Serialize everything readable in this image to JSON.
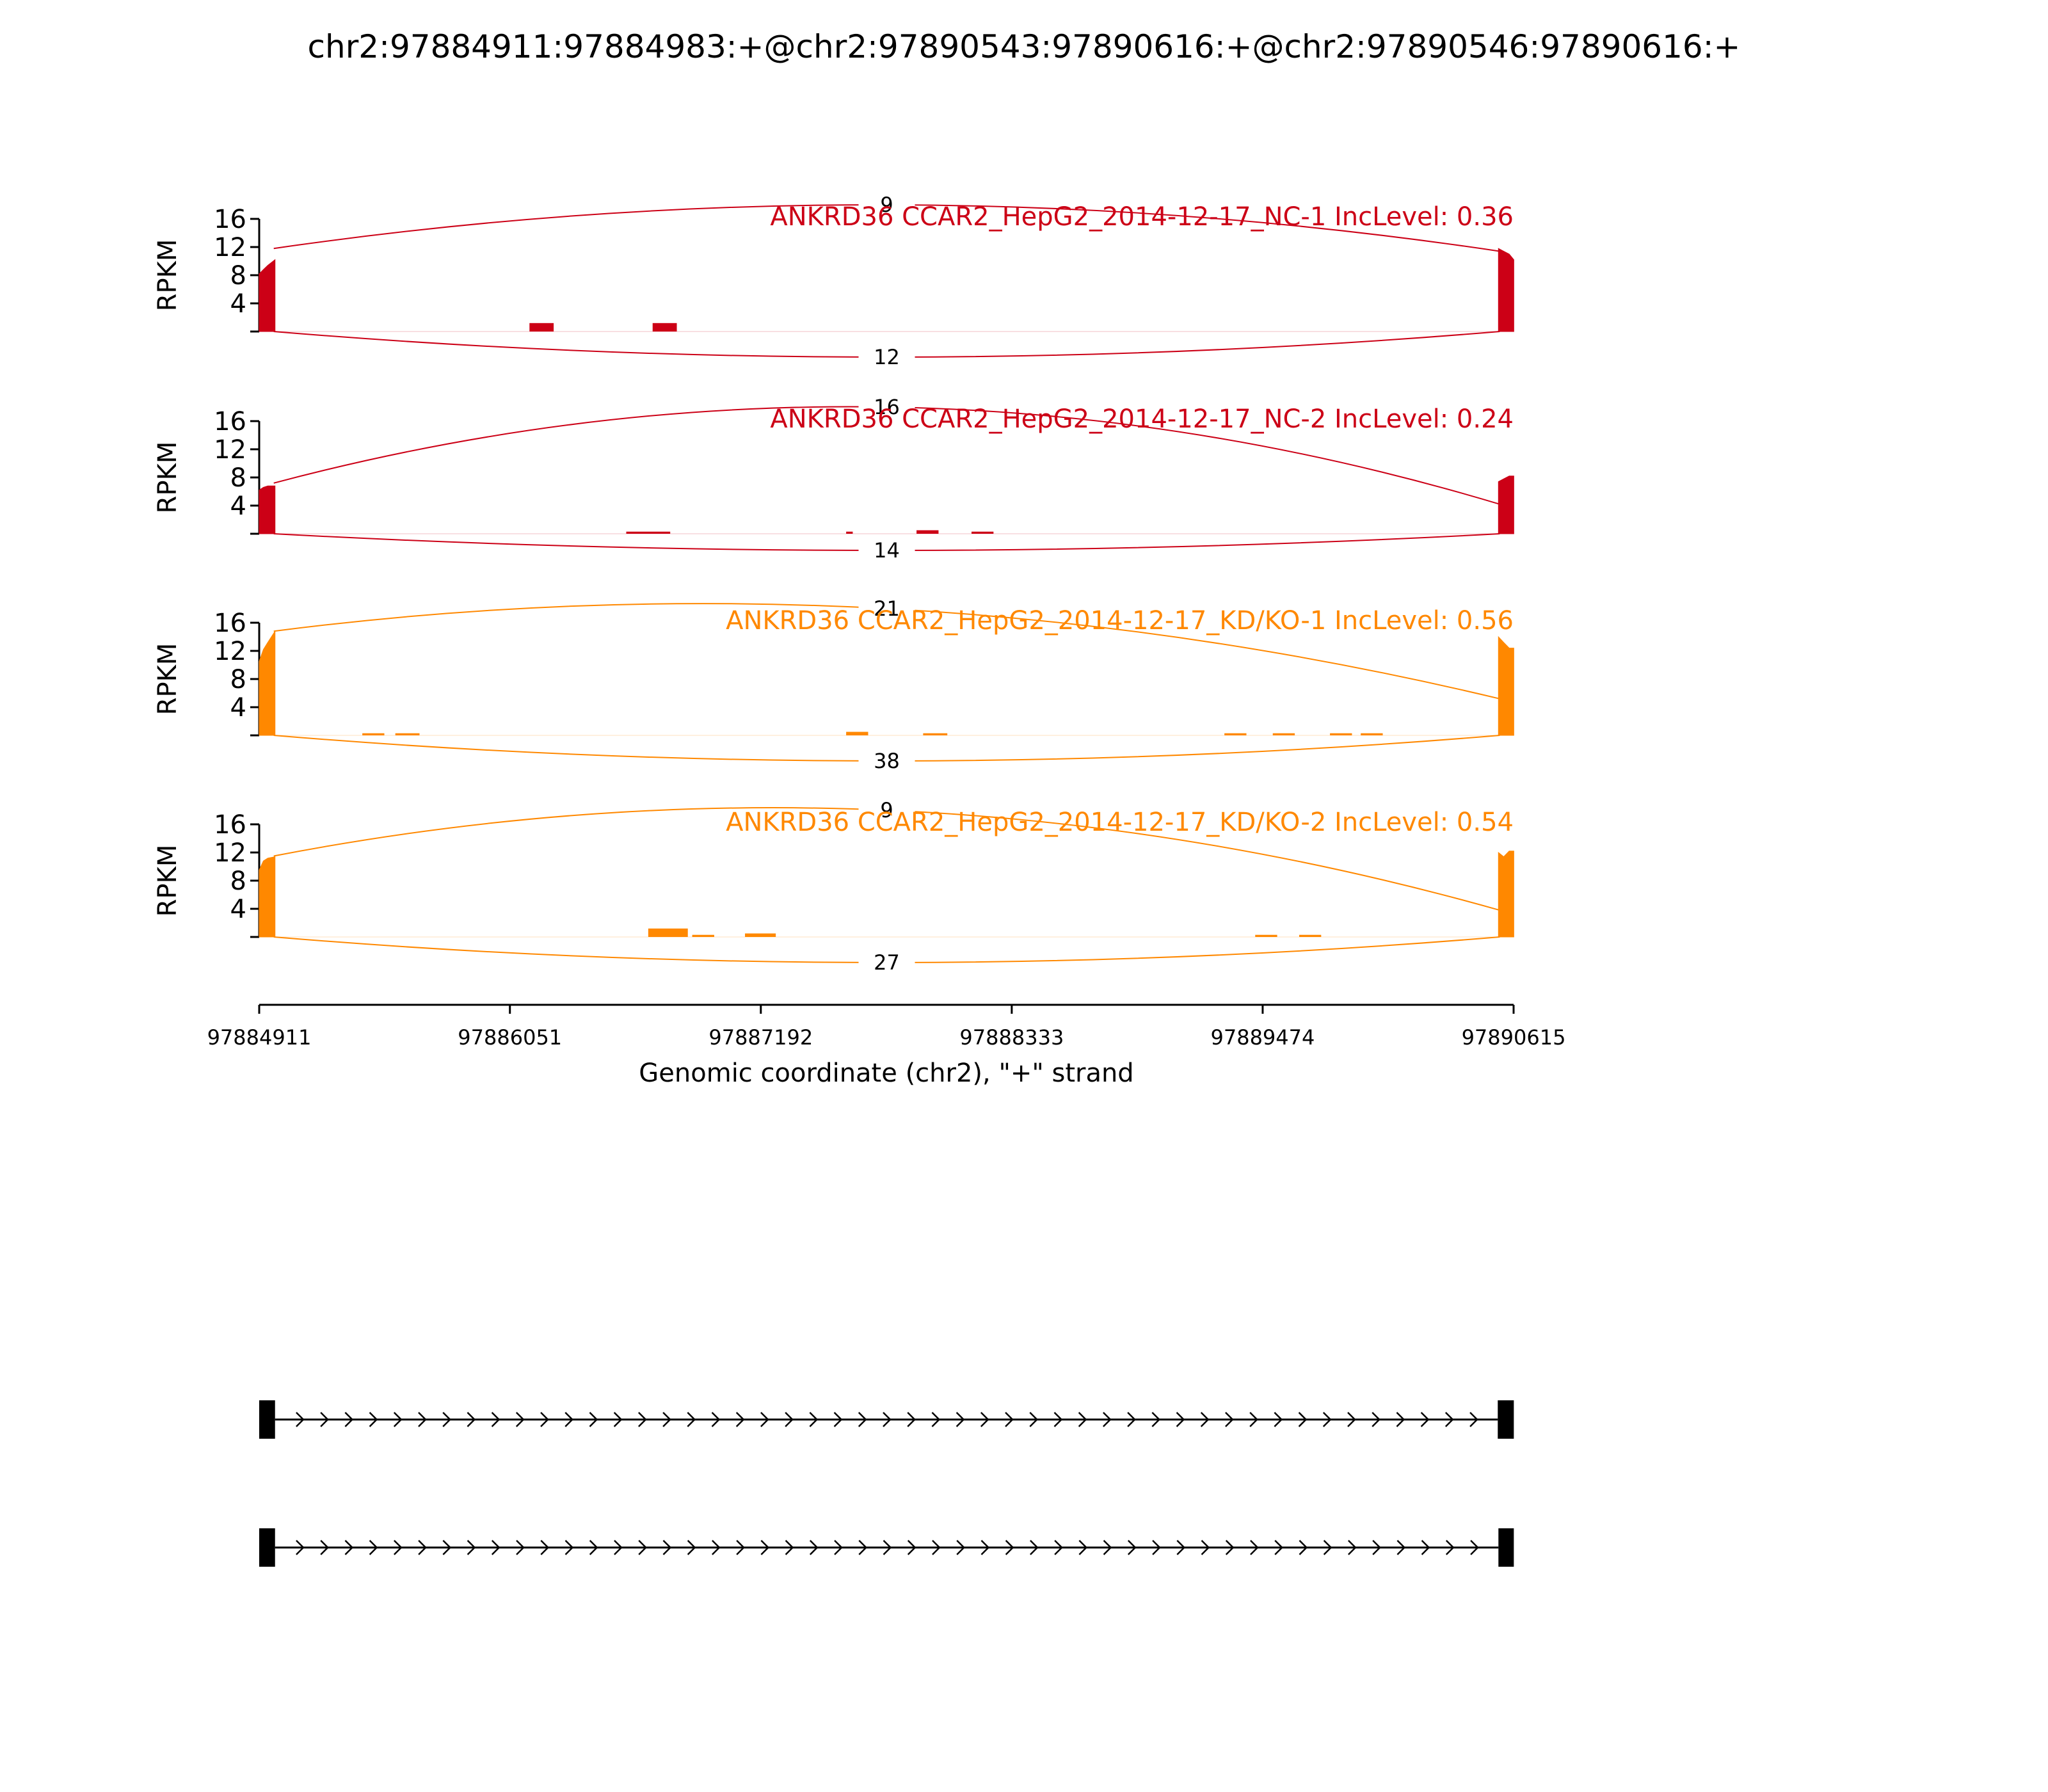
{
  "chart_data": {
    "type": "area",
    "title": "chr2:97884911:97884983:+@chr2:97890543:97890616:+@chr2:97890546:97890616:+",
    "ylabel": "RPKM",
    "xlabel": "Genomic coordinate (chr2), \"+\" strand",
    "xlim": [
      97884911,
      97890615
    ],
    "ylim": [
      0,
      16
    ],
    "yticks": [
      "4",
      "8",
      "12",
      "16"
    ],
    "xticks": [
      97884911,
      97886051,
      97887192,
      97888333,
      97889474,
      97890615
    ],
    "xtick_labels": [
      "97884911",
      "97886051",
      "97887192",
      "97888333",
      "97889474",
      "97890615"
    ],
    "colors": {
      "nc": "#cc0016",
      "kd": "#ff8800",
      "axis": "#000000",
      "transcript": "#000000"
    },
    "panels": [
      {
        "label": "ANKRD36 CCAR2_HepG2_2014-12-17_NC-1 IncLevel: 0.36",
        "color": "#cc0016",
        "junction_upper": "9",
        "junction_lower": "12",
        "upper_arc_ends": [
          11.8,
          11.4
        ],
        "coverage_left": [
          [
            97884911,
            8.2
          ],
          [
            97884930,
            8.8
          ],
          [
            97884950,
            9.4
          ],
          [
            97884983,
            10.2
          ]
        ],
        "coverage_right": [
          [
            97890546,
            11.8
          ],
          [
            97890570,
            11.4
          ],
          [
            97890595,
            11.0
          ],
          [
            97890616,
            10.2
          ]
        ],
        "blocks": [
          [
            97886140,
            97886250,
            1.2
          ],
          [
            97886700,
            97886810,
            1.2
          ]
        ]
      },
      {
        "label": "ANKRD36 CCAR2_HepG2_2014-12-17_NC-2 IncLevel: 0.24",
        "color": "#cc0016",
        "junction_upper": "16",
        "junction_lower": "14",
        "upper_arc_ends": [
          7.2,
          4.2
        ],
        "coverage_left": [
          [
            97884911,
            6.2
          ],
          [
            97884930,
            6.6
          ],
          [
            97884950,
            6.8
          ],
          [
            97884983,
            6.8
          ]
        ],
        "coverage_right": [
          [
            97890546,
            7.4
          ],
          [
            97890570,
            7.8
          ],
          [
            97890595,
            8.2
          ],
          [
            97890616,
            8.2
          ]
        ],
        "blocks": [
          [
            97886580,
            97886780,
            0.3
          ],
          [
            97887580,
            97887610,
            0.3
          ],
          [
            97887900,
            97888000,
            0.5
          ],
          [
            97888150,
            97888250,
            0.3
          ]
        ]
      },
      {
        "label": "ANKRD36 CCAR2_HepG2_2014-12-17_KD/KO-1 IncLevel: 0.56",
        "color": "#ff8800",
        "junction_upper": "21",
        "junction_lower": "38",
        "upper_arc_ends": [
          14.8,
          5.2
        ],
        "coverage_left": [
          [
            97884911,
            10.5
          ],
          [
            97884930,
            12.2
          ],
          [
            97884950,
            13.2
          ],
          [
            97884983,
            14.8
          ]
        ],
        "coverage_right": [
          [
            97890546,
            14.0
          ],
          [
            97890570,
            13.2
          ],
          [
            97890595,
            12.4
          ],
          [
            97890616,
            12.4
          ]
        ],
        "blocks": [
          [
            97885380,
            97885480,
            0.3
          ],
          [
            97885530,
            97885640,
            0.3
          ],
          [
            97887580,
            97887680,
            0.5
          ],
          [
            97887930,
            97888040,
            0.3
          ],
          [
            97889300,
            97889400,
            0.3
          ],
          [
            97889520,
            97889620,
            0.3
          ],
          [
            97889780,
            97889880,
            0.3
          ],
          [
            97889920,
            97890020,
            0.3
          ]
        ]
      },
      {
        "label": "ANKRD36 CCAR2_HepG2_2014-12-17_KD/KO-2 IncLevel: 0.54",
        "color": "#ff8800",
        "junction_upper": "9",
        "junction_lower": "27",
        "upper_arc_ends": [
          11.5,
          3.8
        ],
        "coverage_left": [
          [
            97884911,
            9.5
          ],
          [
            97884930,
            10.8
          ],
          [
            97884950,
            11.2
          ],
          [
            97884983,
            11.4
          ]
        ],
        "coverage_right": [
          [
            97890546,
            12.0
          ],
          [
            97890570,
            11.4
          ],
          [
            97890595,
            12.2
          ],
          [
            97890616,
            12.2
          ]
        ],
        "blocks": [
          [
            97886680,
            97886860,
            1.2
          ],
          [
            97886880,
            97886980,
            0.3
          ],
          [
            97887120,
            97887260,
            0.5
          ],
          [
            97889440,
            97889540,
            0.3
          ],
          [
            97889640,
            97889740,
            0.3
          ]
        ]
      }
    ],
    "transcripts": [
      {
        "exons": [
          [
            97884911,
            97884983
          ],
          [
            97890543,
            97890616
          ]
        ]
      },
      {
        "exons": [
          [
            97884911,
            97884983
          ],
          [
            97890546,
            97890616
          ]
        ]
      }
    ],
    "grid": false,
    "legend": "none"
  }
}
